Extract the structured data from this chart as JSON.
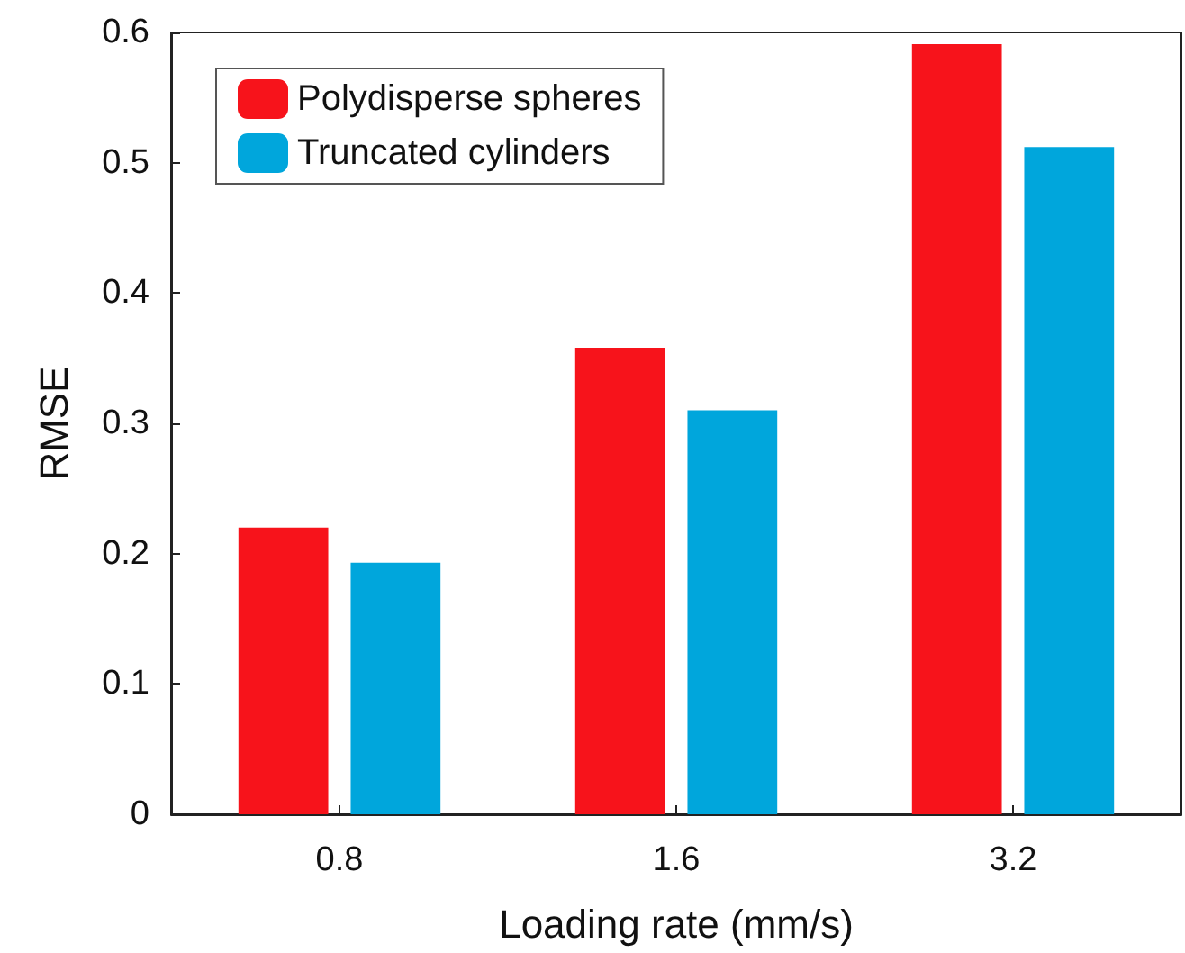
{
  "chart_data": {
    "type": "bar",
    "xlabel": "Loading rate (mm/s)",
    "ylabel": "RMSE",
    "categories": [
      "0.8",
      "1.6",
      "3.2"
    ],
    "series": [
      {
        "name": "Polydisperse spheres",
        "color": "#f7131b",
        "values": [
          0.22,
          0.358,
          0.591
        ]
      },
      {
        "name": "Truncated cylinders",
        "color": "#00a6dc",
        "values": [
          0.193,
          0.31,
          0.512
        ]
      }
    ],
    "ylim": [
      0,
      0.6
    ],
    "yticks": [
      0,
      0.1,
      0.2,
      0.3,
      0.4,
      0.5,
      0.6
    ],
    "grid": false,
    "legend": "top left"
  }
}
